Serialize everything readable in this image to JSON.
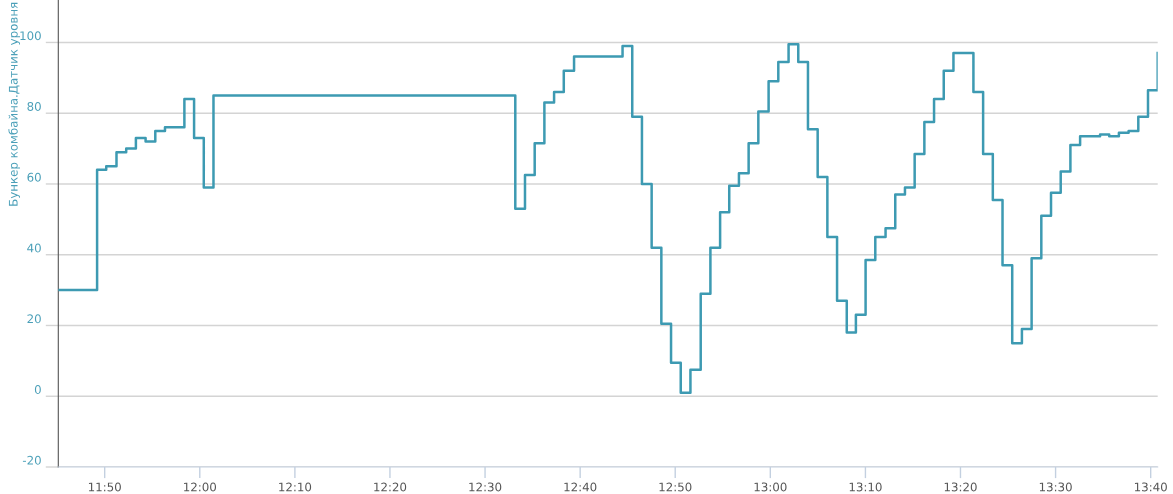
{
  "chart_data": {
    "type": "step",
    "ylabel": "Бункер комбайна.Датчик уровня",
    "x": [
      11.752,
      11.82,
      11.836,
      11.854,
      11.871,
      11.888,
      11.905,
      11.922,
      11.939,
      11.973,
      11.99,
      12.007,
      12.024,
      12.553,
      12.57,
      12.587,
      12.604,
      12.621,
      12.638,
      12.656,
      12.741,
      12.758,
      12.775,
      12.792,
      12.809,
      12.826,
      12.843,
      12.86,
      12.878,
      12.895,
      12.912,
      12.928,
      12.945,
      12.962,
      12.979,
      12.997,
      13.014,
      13.032,
      13.049,
      13.066,
      13.083,
      13.1,
      13.117,
      13.134,
      13.15,
      13.167,
      13.184,
      13.202,
      13.219,
      13.236,
      13.253,
      13.27,
      13.287,
      13.304,
      13.321,
      13.356,
      13.373,
      13.39,
      13.407,
      13.424,
      13.441,
      13.458,
      13.475,
      13.492,
      13.509,
      13.526,
      13.543,
      13.578,
      13.594,
      13.611,
      13.628,
      13.645,
      13.662,
      13.679
    ],
    "series": [
      {
        "color": "#3d9ab2",
        "values": [
          30,
          64,
          65,
          69,
          70,
          73,
          72,
          75,
          76,
          84,
          73,
          59,
          85,
          53,
          62.5,
          71.5,
          83,
          86,
          92,
          96,
          99,
          79,
          60,
          42,
          20.5,
          9.5,
          1,
          7.5,
          29,
          42,
          52,
          59.5,
          63,
          71.5,
          80.5,
          89,
          94.5,
          99.5,
          94.5,
          75.5,
          62,
          45,
          27,
          18,
          23,
          38.5,
          45,
          47.5,
          57,
          59,
          68.5,
          77.5,
          84,
          92,
          97,
          86,
          68.5,
          55.5,
          37,
          15,
          19,
          39,
          51,
          57.5,
          63.5,
          71,
          73.5,
          74,
          73.5,
          74.5,
          75,
          79,
          86.5,
          97
        ]
      }
    ],
    "xlim": [
      11.752,
      13.679
    ],
    "ylim": [
      -20,
      112
    ],
    "xticks": [
      {
        "value": 11.8333,
        "label": "11:50"
      },
      {
        "value": 12,
        "label": "12:00"
      },
      {
        "value": 12.1667,
        "label": "12:10"
      },
      {
        "value": 12.3333,
        "label": "12:20"
      },
      {
        "value": 12.5,
        "label": "12:30"
      },
      {
        "value": 12.6667,
        "label": "12:40"
      },
      {
        "value": 12.8333,
        "label": "12:50"
      },
      {
        "value": 13,
        "label": "13:00"
      },
      {
        "value": 13.1667,
        "label": "13:10"
      },
      {
        "value": 13.3333,
        "label": "13:20"
      },
      {
        "value": 13.5,
        "label": "13:30"
      },
      {
        "value": 13.6667,
        "label": "13:40"
      }
    ],
    "yticks": [
      -20,
      0,
      20,
      40,
      60,
      80,
      100
    ],
    "grid": "y"
  }
}
